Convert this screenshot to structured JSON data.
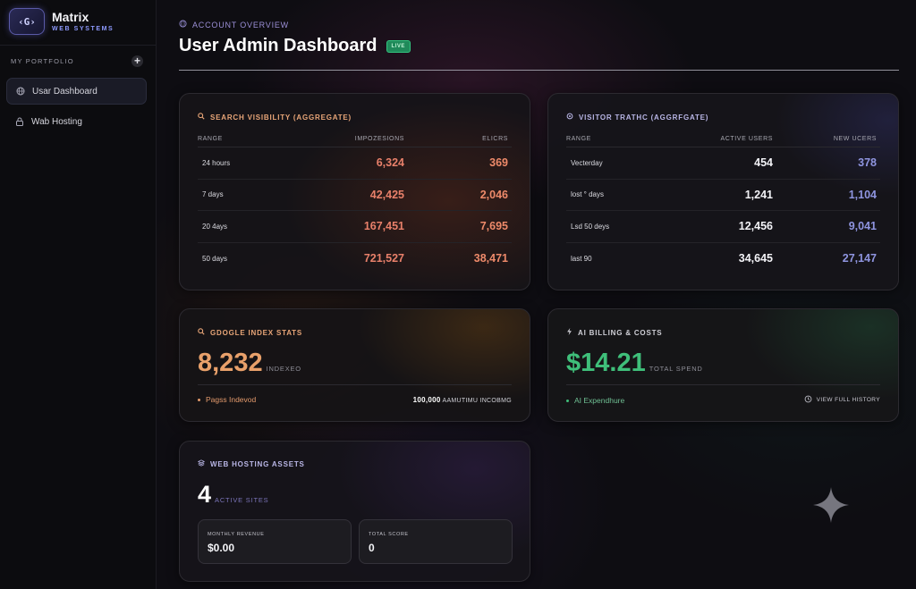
{
  "brand": {
    "logo_glyph": "‹G›",
    "name": "Matrix",
    "subtitle": "WEB SYSTEMS"
  },
  "sidebar": {
    "section_label": "MY PORTFOLIO",
    "add_label": "+",
    "items": [
      {
        "label": "Usar Dashboard",
        "icon": "globe-icon",
        "active": true
      },
      {
        "label": "Wab Hosting",
        "icon": "lock-icon",
        "active": false
      }
    ]
  },
  "header": {
    "breadcrumb": "ACCOUNT OVERVIEW",
    "title": "User Admin Dashboard",
    "badge": "LIVE"
  },
  "search_card": {
    "title": "SEARCH VISIBILITY (AGGREGATE)",
    "icon": "search-icon",
    "columns": [
      "RANGE",
      "IMPOZESIONS",
      "ELICRS"
    ],
    "rows": [
      {
        "range": "24 hours",
        "impressions": "6,324",
        "clicks": "369"
      },
      {
        "range": "7 days",
        "impressions": "42,425",
        "clicks": "2,046"
      },
      {
        "range": "20 4ays",
        "impressions": "167,451",
        "clicks": "7,695"
      },
      {
        "range": "50 days",
        "impressions": "721,527",
        "clicks": "38,471"
      }
    ],
    "accent": "#e8806a"
  },
  "traffic_card": {
    "title": "VISITOR TRATHC (AGGRFGATE)",
    "icon": "user-icon",
    "columns": [
      "RANGE",
      "ACTIVE USERS",
      "NEW UCERS"
    ],
    "rows": [
      {
        "range": "Vecterday",
        "active": "454",
        "new": "378"
      },
      {
        "range": "lost ° days",
        "active": "1,241",
        "new": "1,104"
      },
      {
        "range": "Lsd 50 deys",
        "active": "12,456",
        "new": "9,041"
      },
      {
        "range": "last 90",
        "active": "34,645",
        "new": "27,147"
      }
    ],
    "accent": "#8f95e0"
  },
  "index_card": {
    "title": "GDOGLE INDEX STATS",
    "icon": "search-icon",
    "value": "8,232",
    "unit": "INDEXEO",
    "foot_left": "Pagss Indevod",
    "foot_right_value": "100,000",
    "foot_right_label": "AAMUTIMU INCOBMG",
    "accent": "#e8a06a"
  },
  "billing_card": {
    "title": "AI BILLING & COSTS",
    "icon": "bolt-icon",
    "value": "$14.21",
    "unit": "TOTAL SPEND",
    "foot_left": "AI Expendhure",
    "history_label": "VIEW FULL HISTORY",
    "accent": "#3fbf7a"
  },
  "hosting_card": {
    "title": "WEB HOSTING ASSETS",
    "icon": "server-icon",
    "value": "4",
    "unit": "ACTIVE SITES",
    "boxes": [
      {
        "label": "MONTHLY REVENUE",
        "value": "$0.00"
      },
      {
        "label": "TOTAL SCORE",
        "value": "0"
      }
    ]
  },
  "decor": {
    "sparkle_icon": "sparkle-icon"
  }
}
